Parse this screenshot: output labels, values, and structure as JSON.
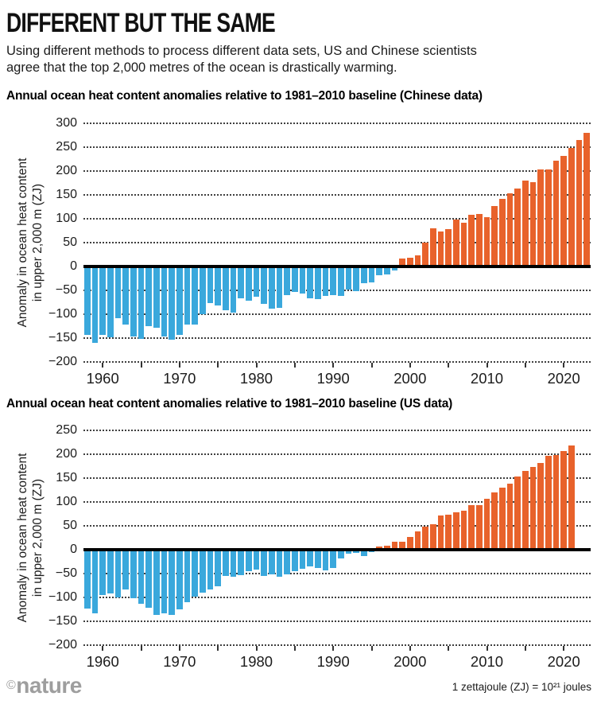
{
  "page": {
    "title": "DIFFERENT BUT THE SAME",
    "subtitle_line1": "Using different methods to process different data sets, US and Chinese scientists",
    "subtitle_line2": "agree that the top 2,000 metres of the ocean is drastically warming.",
    "brand_copyright": "©",
    "brand_name": "nature",
    "footer_note": "1 zettajoule (ZJ) = 10²¹ joules"
  },
  "colors": {
    "positive_bar": "#E8622B",
    "negative_bar": "#3AA8DC",
    "zero_line": "#000000",
    "gridline": "#3F3F3F",
    "text": "#141414",
    "brand_gray": "#9E9E9E"
  },
  "chart_data": [
    {
      "type": "bar",
      "title": "Annual ocean heat content anomalies relative to 1981–2010 baseline (Chinese data)",
      "ylabel_line1": "Anomaly in ocean heat content",
      "ylabel_line2": "in upper 2,000 m (ZJ)",
      "unit": "ZJ",
      "ylim": [
        -200,
        300
      ],
      "ytick_step": 50,
      "grid": "dotted",
      "legend": "none",
      "x_start_year": 1958,
      "x_end_year": 2023,
      "xtick_minor_step": 5,
      "xticks_labeled": [
        1960,
        1970,
        1980,
        1990,
        2000,
        2010,
        2020
      ],
      "values": [
        -143,
        -160,
        -144,
        -148,
        -108,
        -122,
        -146,
        -152,
        -125,
        -129,
        -147,
        -154,
        -144,
        -122,
        -122,
        -100,
        -76,
        -81,
        -92,
        -96,
        -67,
        -72,
        -64,
        -78,
        -89,
        -86,
        -60,
        -54,
        -57,
        -67,
        -69,
        -61,
        -60,
        -62,
        -49,
        -52,
        -35,
        -33,
        -19,
        -16,
        -8,
        17,
        19,
        23,
        50,
        80,
        73,
        79,
        99,
        92,
        108,
        110,
        103,
        127,
        141,
        153,
        164,
        180,
        176,
        203,
        203,
        222,
        232,
        248,
        265,
        280
      ]
    },
    {
      "type": "bar",
      "title": "Annual ocean heat content anomalies relative to 1981–2010 baseline (US data)",
      "ylabel_line1": "Anomaly in ocean heat content",
      "ylabel_line2": "in upper 2,000 m (ZJ)",
      "unit": "ZJ",
      "ylim": [
        -200,
        250
      ],
      "ytick_step": 50,
      "grid": "dotted",
      "legend": "none",
      "x_start_year": 1958,
      "x_end_year": 2021,
      "xtick_minor_step": 5,
      "xticks_labeled": [
        1960,
        1970,
        1980,
        1990,
        2000,
        2010,
        2020
      ],
      "values": [
        -123,
        -133,
        -95,
        -92,
        -100,
        -84,
        -102,
        -113,
        -122,
        -137,
        -134,
        -137,
        -125,
        -110,
        -99,
        -90,
        -84,
        -76,
        -55,
        -57,
        -54,
        -45,
        -42,
        -55,
        -52,
        -56,
        -52,
        -45,
        -40,
        -35,
        -38,
        -43,
        -38,
        -18,
        -8,
        -6,
        -14,
        -5,
        6,
        8,
        17,
        17,
        27,
        38,
        49,
        53,
        72,
        74,
        79,
        82,
        94,
        93,
        107,
        120,
        130,
        139,
        153,
        165,
        174,
        181,
        197,
        199,
        206,
        219
      ]
    }
  ]
}
